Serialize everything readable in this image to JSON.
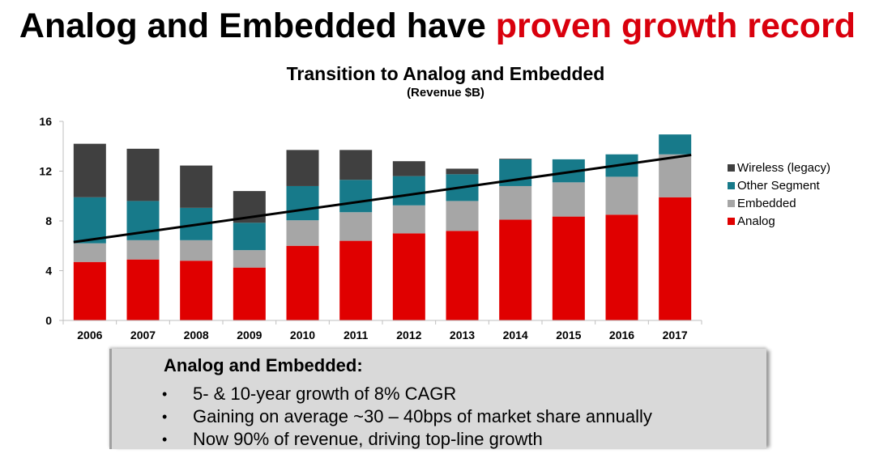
{
  "headline": {
    "part1": "Analog and Embedded have ",
    "part2": "proven growth record",
    "accent_color": "#d9000d"
  },
  "chart_data": {
    "type": "bar",
    "stacked": true,
    "title": "Transition to Analog and Embedded",
    "subtitle": "(Revenue $B)",
    "xlabel": "",
    "ylabel": "",
    "ylim": [
      0,
      16
    ],
    "yticks": [
      "0",
      "4",
      "8",
      "12",
      "16"
    ],
    "ytick_values": [
      0,
      4,
      8,
      12,
      16
    ],
    "grid": false,
    "legend_position": "right",
    "categories": [
      "2006",
      "2007",
      "2008",
      "2009",
      "2010",
      "2011",
      "2012",
      "2013",
      "2014",
      "2015",
      "2016",
      "2017"
    ],
    "series": [
      {
        "name": "Analog",
        "color": "#e00000",
        "values": [
          4.7,
          4.9,
          4.8,
          4.25,
          6.0,
          6.4,
          7.0,
          7.2,
          8.1,
          8.35,
          8.5,
          9.9
        ]
      },
      {
        "name": "Embedded",
        "color": "#a6a6a6",
        "values": [
          1.5,
          1.55,
          1.65,
          1.4,
          2.05,
          2.3,
          2.25,
          2.4,
          2.7,
          2.75,
          3.05,
          3.45
        ]
      },
      {
        "name": "Other Segment",
        "color": "#177a8a",
        "values": [
          3.7,
          3.15,
          2.6,
          2.2,
          2.75,
          2.6,
          2.35,
          2.15,
          2.15,
          1.85,
          1.8,
          1.6
        ]
      },
      {
        "name": "Wireless (legacy)",
        "color": "#404040",
        "values": [
          4.3,
          4.2,
          3.4,
          2.55,
          2.9,
          2.4,
          1.2,
          0.45,
          0.05,
          0,
          0,
          0
        ]
      }
    ],
    "legend_order": [
      "Wireless (legacy)",
      "Other Segment",
      "Embedded",
      "Analog"
    ],
    "trend_line": {
      "from": {
        "x": "2006",
        "y": 6.3
      },
      "to": {
        "x": "2017",
        "y": 13.3
      },
      "color": "#000000"
    }
  },
  "callout": {
    "heading": "Analog and Embedded:",
    "bullet_char": "•",
    "bullets": [
      "5- & 10-year growth of 8% CAGR",
      "Gaining on average ~30 – 40bps of market share annually",
      "Now 90% of revenue, driving top-line growth"
    ]
  }
}
